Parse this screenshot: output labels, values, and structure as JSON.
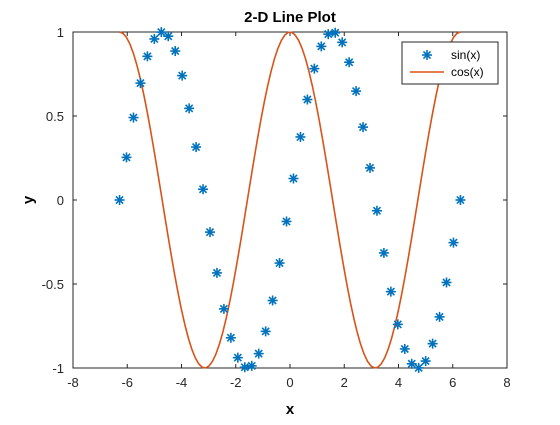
{
  "chart_data": {
    "type": "line",
    "title": "2-D Line Plot",
    "xlabel": "x",
    "ylabel": "y",
    "xlim": [
      -8,
      8
    ],
    "ylim": [
      -1,
      1
    ],
    "xticks": [
      -8,
      -6,
      -4,
      -2,
      0,
      2,
      4,
      6,
      8
    ],
    "yticks": [
      -1,
      -0.5,
      0,
      0.5,
      1
    ],
    "xtick_labels": [
      "-8",
      "-6",
      "-4",
      "-2",
      "0",
      "2",
      "4",
      "6",
      "8"
    ],
    "ytick_labels": [
      "-1",
      "-0.5",
      "0",
      "0.5",
      "1"
    ],
    "grid": false,
    "legend_position": "top-right",
    "series": [
      {
        "name": "sin(x)",
        "style": "markers",
        "marker": "asterisk",
        "color": "#0072BD",
        "x_start": -6.2832,
        "x_end": 6.2832,
        "num_points": 50,
        "function": "sin"
      },
      {
        "name": "cos(x)",
        "style": "line",
        "color": "#D95319",
        "x_start": -6.2832,
        "x_end": 6.2832,
        "num_points": 100,
        "function": "cos"
      }
    ]
  }
}
